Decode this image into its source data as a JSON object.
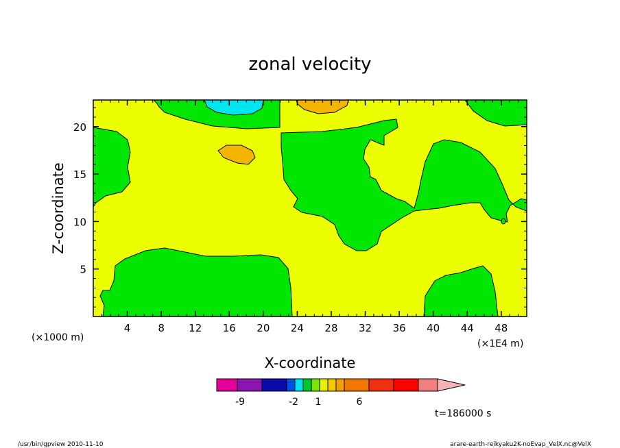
{
  "chart_data": {
    "type": "heatmap",
    "title": "zonal velocity",
    "xlabel": "X-coordinate",
    "ylabel": "Z-coordinate",
    "x_unit_note": "(×1E4 m)",
    "y_unit_note": "(×1000 m)",
    "xlim": [
      0,
      51
    ],
    "ylim": [
      0,
      22.8
    ],
    "x_ticks": [
      "4",
      "8",
      "12",
      "16",
      "20",
      "24",
      "28",
      "32",
      "36",
      "40",
      "44",
      "48"
    ],
    "y_ticks": [
      "5",
      "10",
      "15",
      "20"
    ],
    "colorbar": {
      "colors": [
        "#e6009a",
        "#8a16b0",
        "#0a0aa8",
        "#0050e6",
        "#00e6f0",
        "#00c828",
        "#78e600",
        "#e6f000",
        "#f5c800",
        "#f0a000",
        "#f07800",
        "#f03010",
        "#ff0000",
        "#f08080",
        "#f5b4b4"
      ],
      "tick_labels": [
        "-9",
        "-2",
        "1",
        "6"
      ]
    },
    "regions_note": "background ~0 (yellow); green patches slightly negative; cyan and orange cells near top",
    "time_label": "t=186000 s"
  },
  "footer": {
    "left": "/usr/bin/gpview  2010-11-10",
    "right": "arare-earth-reikyaku2K-noEvap_VelX.nc@VelX"
  }
}
